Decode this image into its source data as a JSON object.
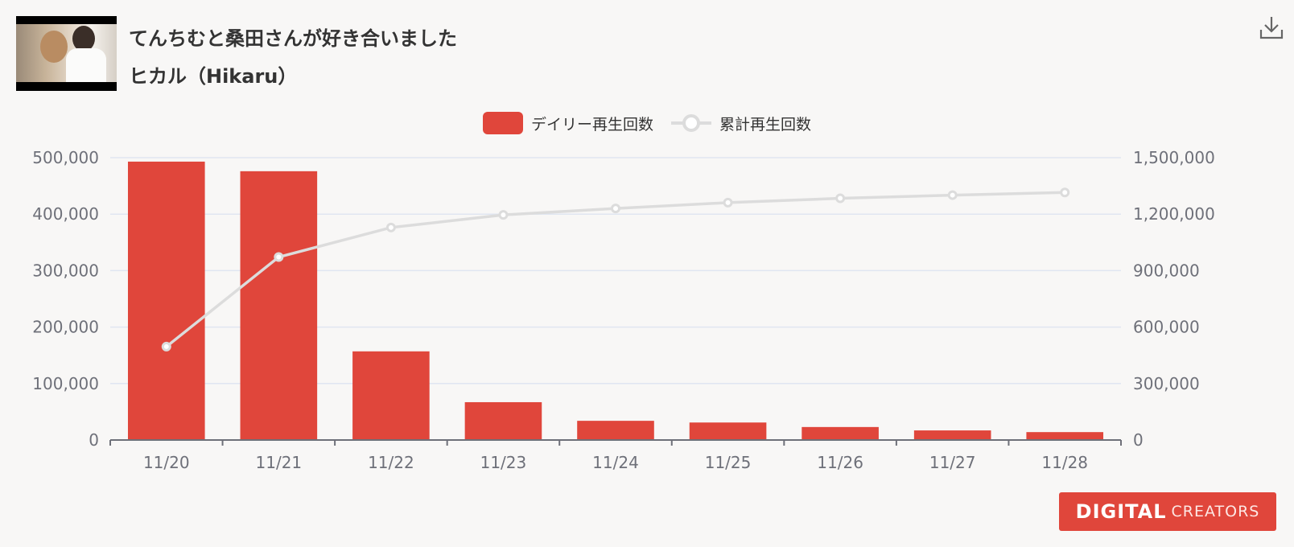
{
  "header": {
    "title": "てんちむと桑田さんが好き合いました",
    "channel": "ヒカル（Hikaru）"
  },
  "icons": {
    "download": "download-icon",
    "thumbnail": "video-thumbnail"
  },
  "colors": {
    "bar": "#e0463b",
    "line": "#dcdcdc",
    "background": "#f8f7f6",
    "grid": "#e0e6f1"
  },
  "logo": {
    "main": "DIGITAL",
    "sub": "CREATORS"
  },
  "chart_data": {
    "type": "bar",
    "categories": [
      "11/20",
      "11/21",
      "11/22",
      "11/23",
      "11/24",
      "11/25",
      "11/26",
      "11/27",
      "11/28"
    ],
    "series": [
      {
        "name": "デイリー再生回数",
        "type": "bar",
        "axis": "left",
        "values": [
          493000,
          476000,
          157000,
          67000,
          34000,
          31000,
          23000,
          17000,
          14000
        ]
      },
      {
        "name": "累計再生回数",
        "type": "line",
        "axis": "right",
        "values": [
          496000,
          972000,
          1129000,
          1196000,
          1230000,
          1261000,
          1284000,
          1301000,
          1315000
        ]
      }
    ],
    "y_left": {
      "min": 0,
      "max": 500000,
      "ticks": [
        "0",
        "100,000",
        "200,000",
        "300,000",
        "400,000",
        "500,000"
      ]
    },
    "y_right": {
      "min": 0,
      "max": 1500000,
      "ticks": [
        "0",
        "300,000",
        "600,000",
        "900,000",
        "1,200,000",
        "1,500,000"
      ]
    },
    "grid": true,
    "legend_position": "top-center"
  }
}
